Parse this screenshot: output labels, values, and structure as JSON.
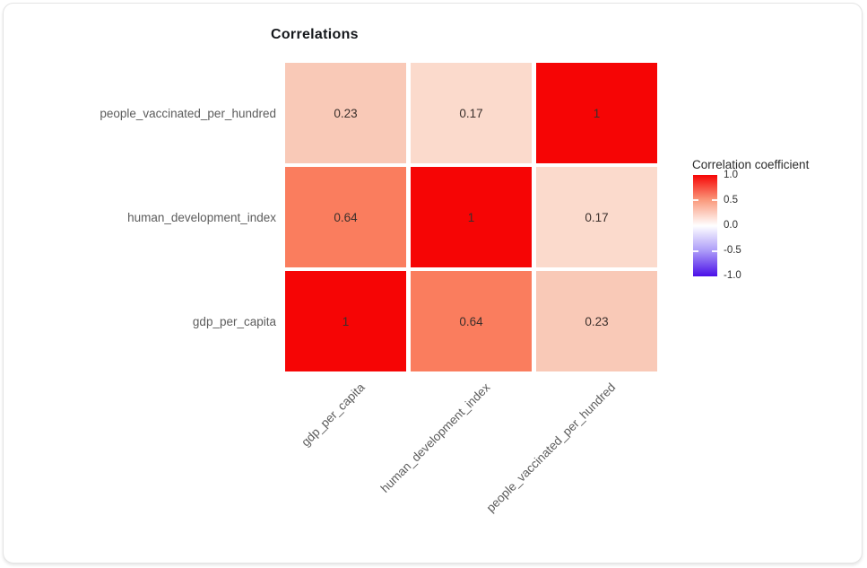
{
  "page": {
    "background": "#ffffff",
    "card_border": "#e4e4e4"
  },
  "title": "Correlations",
  "legend": {
    "title": "Correlation coefficient",
    "ticks": [
      "1.0",
      "0.5",
      "0.0",
      "-0.5",
      "-1.0"
    ],
    "gradient_stops": [
      "#f60505",
      "#fa9a7d",
      "#ffffff",
      "#ab9bf8",
      "#4a0fe8"
    ]
  },
  "chart_data": {
    "type": "heatmap",
    "title": "Correlations",
    "rows": [
      "people_vaccinated_per_hundred",
      "human_development_index",
      "gdp_per_capita"
    ],
    "columns": [
      "gdp_per_capita",
      "human_development_index",
      "people_vaccinated_per_hundred"
    ],
    "values": [
      [
        0.23,
        0.17,
        1
      ],
      [
        0.64,
        1,
        0.17
      ],
      [
        1,
        0.64,
        0.23
      ]
    ],
    "cell_labels": [
      [
        "0.23",
        "0.17",
        "1"
      ],
      [
        "0.64",
        "1",
        "0.17"
      ],
      [
        "1",
        "0.64",
        "0.23"
      ]
    ],
    "cell_colors": [
      [
        "#f9c9b7",
        "#fbdacc",
        "#f60505"
      ],
      [
        "#fa7d5e",
        "#f60505",
        "#fbdacc"
      ],
      [
        "#f60505",
        "#fa7d5e",
        "#f9c9b7"
      ]
    ],
    "colorbar": {
      "label": "Correlation coefficient",
      "range": [
        -1,
        1
      ],
      "high_color": "#f60505",
      "mid_color": "#ffffff",
      "low_color": "#4a0fe8"
    },
    "legend_position": "right",
    "grid": false
  }
}
